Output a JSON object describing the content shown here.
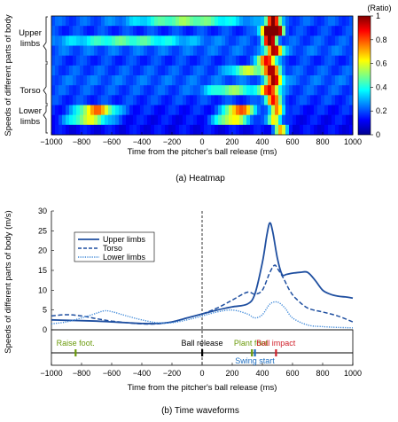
{
  "chart_data": [
    {
      "type": "heatmap",
      "title": "",
      "caption": "(a) Heatmap",
      "xlabel": "Time from the pitcher's ball release (ms)",
      "ylabel": "Speeds of different parts of body",
      "xlim": [
        -1000,
        1000
      ],
      "x_ticks": [
        "−1000",
        "−800",
        "−600",
        "−400",
        "−200",
        "0",
        "200",
        "400",
        "600",
        "800",
        "1000"
      ],
      "row_groups": [
        "Upper limbs",
        "Torso",
        "Lower limbs"
      ],
      "colorbar": {
        "label": "(Ratio)",
        "range": [
          0,
          1
        ],
        "ticks": [
          "1",
          "0.8",
          "0.6",
          "0.4",
          "0.2",
          "0"
        ],
        "colors": [
          "#00008f",
          "#0000ff",
          "#0080ff",
          "#00ffff",
          "#80ff80",
          "#ffff00",
          "#ff8000",
          "#ff0000",
          "#800000"
        ]
      },
      "rows": [
        {
          "group": "Upper limbs",
          "peaks": [
            [
              470,
              0.85,
              30
            ],
            [
              -100,
              0.3,
              250
            ]
          ],
          "base": 0.2
        },
        {
          "group": "Upper limbs",
          "peaks": [
            [
              440,
              0.95,
              35
            ],
            [
              510,
              0.7,
              25
            ]
          ],
          "base": 0.18
        },
        {
          "group": "Upper limbs",
          "peaks": [
            [
              450,
              0.9,
              30
            ],
            [
              -500,
              0.25,
              300
            ]
          ],
          "base": 0.2
        },
        {
          "group": "Upper limbs",
          "peaks": [
            [
              480,
              0.8,
              35
            ]
          ],
          "base": 0.22
        },
        {
          "group": "Upper limbs",
          "peaks": [
            [
              430,
              0.75,
              40
            ]
          ],
          "base": 0.18
        },
        {
          "group": "Torso",
          "peaks": [
            [
              460,
              0.7,
              40
            ],
            [
              300,
              0.35,
              80
            ]
          ],
          "base": 0.2
        },
        {
          "group": "Torso",
          "peaks": [
            [
              480,
              0.78,
              35
            ]
          ],
          "base": 0.22
        },
        {
          "group": "Torso",
          "peaks": [
            [
              450,
              0.7,
              40
            ],
            [
              200,
              0.3,
              120
            ]
          ],
          "base": 0.2
        },
        {
          "group": "Torso",
          "peaks": [
            [
              470,
              0.68,
              35
            ]
          ],
          "base": 0.18
        },
        {
          "group": "Lower limbs",
          "peaks": [
            [
              -700,
              0.6,
              90
            ],
            [
              250,
              0.65,
              70
            ],
            [
              500,
              0.6,
              30
            ]
          ],
          "base": 0.15
        },
        {
          "group": "Lower limbs",
          "peaks": [
            [
              -750,
              0.45,
              100
            ],
            [
              200,
              0.5,
              80
            ],
            [
              480,
              0.55,
              30
            ]
          ],
          "base": 0.13
        },
        {
          "group": "Lower limbs",
          "peaks": [
            [
              520,
              0.55,
              30
            ]
          ],
          "base": 0.12
        }
      ]
    },
    {
      "type": "line",
      "title": "",
      "caption": "(b) Time waveforms",
      "xlabel": "Time from the pitcher's ball release (ms)",
      "ylabel": "Speeds of different parts of body (m/s)",
      "xlim": [
        -1000,
        1000
      ],
      "ylim": [
        0,
        30
      ],
      "x_ticks": [
        "−1000",
        "−800",
        "−600",
        "−400",
        "−200",
        "0",
        "200",
        "400",
        "600",
        "800",
        "1000"
      ],
      "y_ticks": [
        "0",
        "5",
        "10",
        "15",
        "20",
        "25",
        "30"
      ],
      "legend_placement": "upper-left",
      "reference_line_x": 0,
      "series": [
        {
          "name": "Upper limbs",
          "style": "solid",
          "color": "#1f4fa0",
          "x": [
            -1000,
            -900,
            -800,
            -700,
            -600,
            -500,
            -400,
            -300,
            -200,
            -100,
            0,
            100,
            200,
            300,
            350,
            400,
            430,
            450,
            470,
            500,
            530,
            560,
            600,
            650,
            700,
            750,
            800,
            850,
            900,
            950,
            1000
          ],
          "y": [
            2.5,
            2.4,
            2.3,
            2.2,
            2.0,
            1.8,
            1.6,
            1.6,
            2.0,
            3.0,
            4.0,
            5.0,
            5.8,
            6.5,
            9.0,
            17.0,
            24.0,
            27.0,
            24.5,
            18.0,
            14.0,
            14.0,
            14.3,
            14.5,
            14.5,
            12.5,
            10.0,
            9.0,
            8.5,
            8.3,
            8.0
          ]
        },
        {
          "name": "Torso",
          "style": "dashed",
          "color": "#1f4fa0",
          "x": [
            -1000,
            -900,
            -800,
            -700,
            -600,
            -500,
            -400,
            -300,
            -200,
            -100,
            0,
            100,
            200,
            300,
            350,
            400,
            450,
            480,
            500,
            540,
            580,
            620,
            700,
            800,
            900,
            1000
          ],
          "y": [
            3.5,
            3.8,
            3.5,
            2.8,
            2.2,
            1.8,
            1.5,
            1.5,
            2.0,
            3.0,
            4.0,
            5.5,
            7.5,
            9.5,
            9.0,
            10.0,
            14.5,
            16.3,
            15.5,
            13.0,
            10.0,
            8.0,
            5.5,
            4.5,
            3.5,
            2.0
          ]
        },
        {
          "name": "Lower limbs",
          "style": "dotted",
          "color": "#3a86d8",
          "x": [
            -1000,
            -900,
            -800,
            -700,
            -650,
            -600,
            -500,
            -400,
            -300,
            -200,
            -100,
            0,
            100,
            200,
            300,
            350,
            400,
            450,
            500,
            550,
            600,
            700,
            800,
            900,
            1000
          ],
          "y": [
            1.5,
            2.0,
            3.0,
            4.2,
            4.8,
            4.6,
            3.5,
            2.5,
            1.8,
            1.8,
            2.5,
            3.5,
            4.5,
            5.0,
            4.0,
            3.0,
            3.8,
            6.5,
            7.0,
            5.5,
            3.0,
            1.2,
            0.8,
            0.6,
            0.5
          ]
        }
      ],
      "events": [
        {
          "label": "Raise foot.",
          "x": -840,
          "color": "#6a9a0a",
          "label_row": "upper"
        },
        {
          "label": "Ball release",
          "x": 0,
          "color": "#000000",
          "label_row": "upper"
        },
        {
          "label": "Plant foot.",
          "x": 330,
          "color": "#6a9a0a",
          "label_row": "upper"
        },
        {
          "label": "Ball impact",
          "x": 490,
          "color": "#d0202a",
          "label_row": "upper"
        },
        {
          "label": "Swing start",
          "x": 350,
          "color": "#1f6fc0",
          "label_row": "lower"
        }
      ]
    }
  ]
}
